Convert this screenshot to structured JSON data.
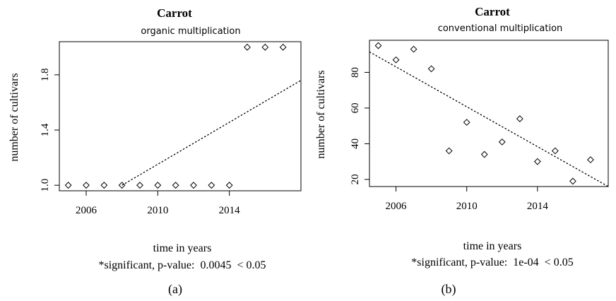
{
  "chart_data": [
    {
      "type": "scatter",
      "title": "Carrot",
      "subtitle": "organic multiplication",
      "xlabel": "time in years",
      "ylabel": "number of cultivars",
      "note": "*significant, p-value:  0.0045  < 0.05",
      "panel_label": "(a)",
      "xlim": [
        2004.5,
        2018
      ],
      "ylim": [
        0.96,
        2.04
      ],
      "xticks": [
        2006,
        2010,
        2014
      ],
      "yticks": [
        1.0,
        1.4,
        1.8
      ],
      "ytick_labels": [
        "1.0",
        "1.4",
        "1.8"
      ],
      "grid": false,
      "x": [
        2005,
        2006,
        2007,
        2008,
        2009,
        2010,
        2011,
        2012,
        2013,
        2014,
        2015,
        2016,
        2017
      ],
      "y": [
        1,
        1,
        1,
        1,
        1,
        1,
        1,
        1,
        1,
        1,
        2,
        2,
        2
      ],
      "trend": {
        "style": "dotted",
        "x": [
          2008,
          2018
        ],
        "y": [
          1.0,
          1.76
        ]
      }
    },
    {
      "type": "scatter",
      "title": "Carrot",
      "subtitle": "conventional multiplication",
      "xlabel": "time in years",
      "ylabel": "number of cultivars",
      "note": "*significant, p-value:  1e-04  < 0.05",
      "panel_label": "(b)",
      "xlim": [
        2004.5,
        2018
      ],
      "ylim": [
        16,
        98
      ],
      "xticks": [
        2006,
        2010,
        2014
      ],
      "yticks": [
        20,
        40,
        60,
        80
      ],
      "ytick_labels": [
        "20",
        "40",
        "60",
        "80"
      ],
      "grid": false,
      "x": [
        2005,
        2006,
        2007,
        2008,
        2009,
        2010,
        2011,
        2012,
        2013,
        2014,
        2015,
        2016,
        2017
      ],
      "y": [
        95,
        87,
        93,
        82,
        36,
        52,
        34,
        41,
        54,
        30,
        36,
        19,
        31
      ],
      "trend": {
        "style": "dotted",
        "x": [
          2004.5,
          2018
        ],
        "y": [
          91.5,
          16
        ]
      }
    }
  ]
}
